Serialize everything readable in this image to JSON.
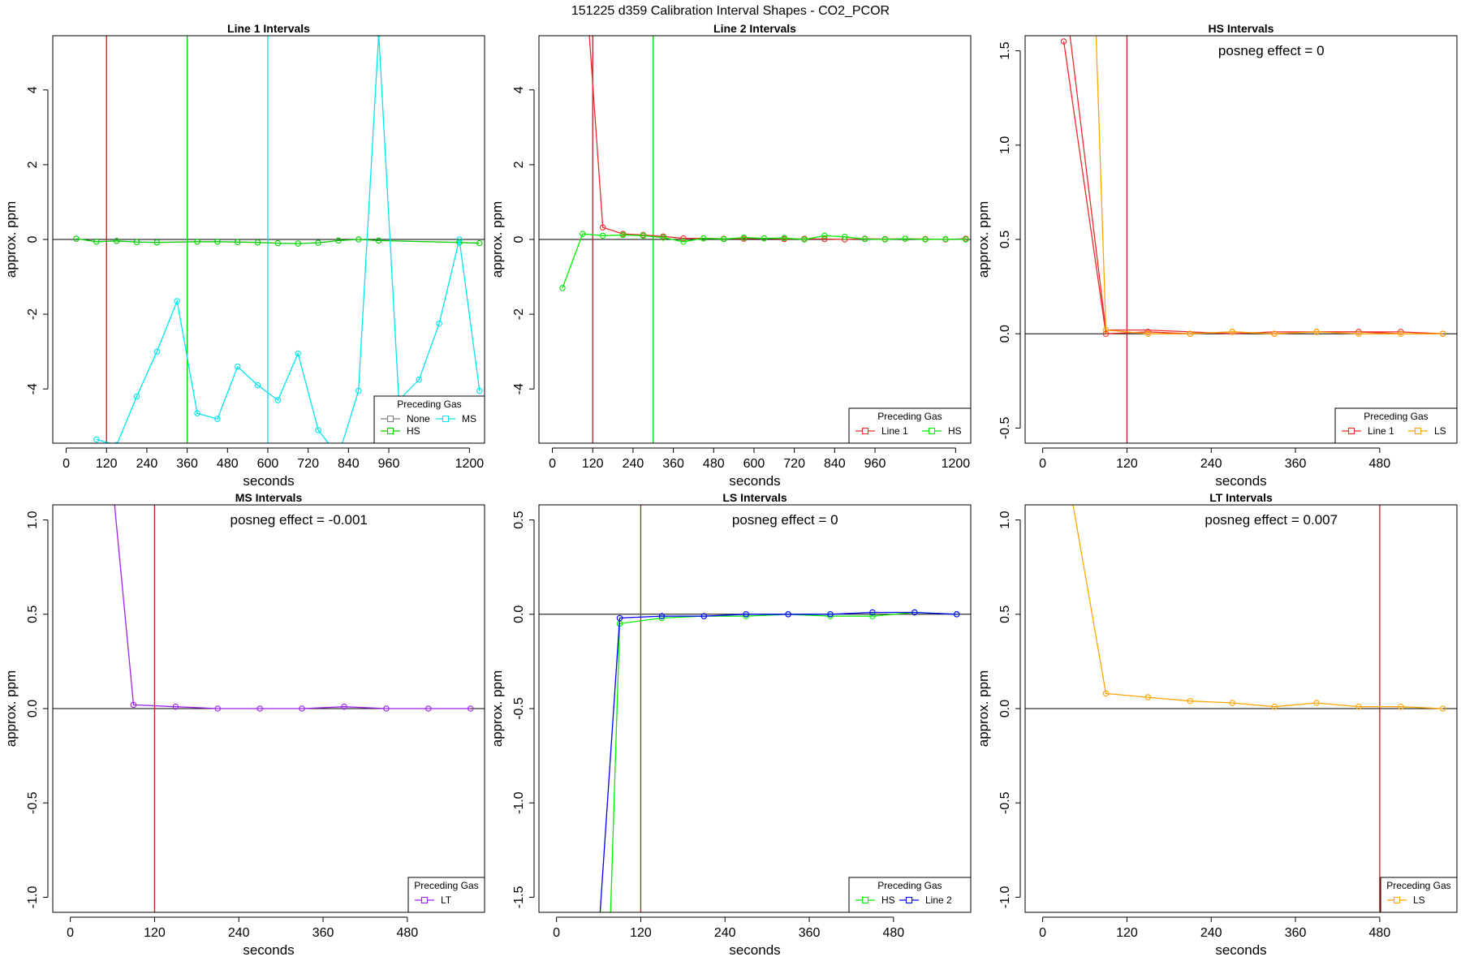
{
  "figure": {
    "title": "151225  d359   Calibration Interval Shapes - CO2_PCOR"
  },
  "chart_data": [
    {
      "type": "line",
      "title": "Line 1 Intervals",
      "xlabel": "seconds",
      "ylabel": "approx. ppm",
      "xlim": [
        -40,
        1245
      ],
      "ylim": [
        -5.45,
        5.45
      ],
      "xticks": [
        0,
        120,
        240,
        360,
        480,
        600,
        720,
        840,
        960,
        1200
      ],
      "yticks": [
        -4,
        -2,
        0,
        2,
        4
      ],
      "hline": 0,
      "vlines": [
        {
          "x": 120,
          "color": "#b22222"
        },
        {
          "x": 360,
          "color": "#00cd00"
        },
        {
          "x": 600,
          "color": "#00e5ee"
        }
      ],
      "annotation": "",
      "legend": {
        "title": "Preceding Gas",
        "position": "bottom-right",
        "columns": 2
      },
      "series": [
        {
          "name": "None",
          "color": "#808080",
          "x": [],
          "y": []
        },
        {
          "name": "HS",
          "color": "#00cd00",
          "x": [
            30,
            90,
            150,
            210,
            270,
            390,
            450,
            510,
            570,
            630,
            690,
            750,
            810,
            870,
            930,
            1170,
            1230
          ],
          "y": [
            0.02,
            -0.06,
            -0.04,
            -0.07,
            -0.08,
            -0.06,
            -0.06,
            -0.07,
            -0.08,
            -0.1,
            -0.11,
            -0.09,
            -0.03,
            0.0,
            -0.03,
            -0.08,
            -0.1
          ]
        },
        {
          "name": "MS",
          "color": "#00e5ee",
          "x": [
            90,
            150,
            210,
            270,
            330,
            390,
            450,
            510,
            570,
            630,
            690,
            750,
            810,
            870,
            930,
            990,
            1050,
            1110,
            1170,
            1230
          ],
          "y": [
            -5.35,
            -5.5,
            -4.2,
            -3.0,
            -1.65,
            -4.65,
            -4.8,
            -3.4,
            -3.9,
            -4.3,
            -3.05,
            -5.1,
            -5.8,
            -4.05,
            5.5,
            -4.3,
            -3.75,
            -2.25,
            0.0,
            -4.05
          ]
        }
      ]
    },
    {
      "type": "line",
      "title": "Line 2 Intervals",
      "xlabel": "seconds",
      "ylabel": "approx. ppm",
      "xlim": [
        -40,
        1245
      ],
      "ylim": [
        -5.45,
        5.45
      ],
      "xticks": [
        0,
        120,
        240,
        360,
        480,
        600,
        720,
        840,
        960,
        1200
      ],
      "yticks": [
        -4,
        -2,
        0,
        2,
        4
      ],
      "hline": 0,
      "vlines": [
        {
          "x": 120,
          "color": "#b22222"
        },
        {
          "x": 300,
          "color": "#00cd00"
        }
      ],
      "annotation": "",
      "legend": {
        "title": "Preceding Gas",
        "position": "bottom-right",
        "columns": 2
      },
      "series": [
        {
          "name": "Line 1",
          "color": "#ee2c2c",
          "x": [
            90,
            150,
            210,
            270,
            330,
            390,
            450,
            510,
            570,
            630,
            690,
            750,
            810,
            870,
            930,
            990,
            1050,
            1110,
            1170,
            1230
          ],
          "y": [
            8.0,
            0.32,
            0.15,
            0.12,
            0.08,
            0.03,
            0.03,
            0.02,
            0.02,
            0.03,
            0.01,
            0.02,
            0.01,
            0.0,
            0.02,
            0.01,
            0.02,
            0.01,
            0.0,
            0.02
          ]
        },
        {
          "name": "HS",
          "color": "#00ee00",
          "x": [
            30,
            90,
            150,
            210,
            270,
            330,
            390,
            450,
            510,
            570,
            630,
            690,
            750,
            810,
            870,
            930,
            990,
            1050,
            1110,
            1170,
            1230
          ],
          "y": [
            -1.3,
            0.15,
            0.1,
            0.12,
            0.1,
            0.05,
            -0.06,
            0.03,
            0.01,
            0.05,
            0.03,
            0.04,
            0.0,
            0.1,
            0.07,
            0.01,
            0.0,
            0.02,
            0.0,
            0.01,
            0.0
          ]
        }
      ]
    },
    {
      "type": "line",
      "title": "HS Intervals",
      "xlabel": "seconds",
      "ylabel": "approx. ppm",
      "xlim": [
        -25,
        590
      ],
      "ylim": [
        -0.58,
        1.58
      ],
      "xticks": [
        0,
        120,
        240,
        360,
        480
      ],
      "yticks": [
        -0.5,
        0.0,
        0.5,
        1.0,
        1.5
      ],
      "hline": 0,
      "vlines": [
        {
          "x": 120,
          "color": "#b22222"
        }
      ],
      "annotation": "posneg effect = 0",
      "legend": {
        "title": "Preceding Gas",
        "position": "bottom-right",
        "columns": 2
      },
      "series": [
        {
          "name": "Line 1",
          "color": "#ee2c2c",
          "x": [
            30,
            90,
            150,
            210,
            270,
            330,
            390,
            450,
            510,
            570
          ],
          "y": [
            1.55,
            0.0,
            0.01,
            0.0,
            0.01,
            0.0,
            0.01,
            0.01,
            0.01,
            0.0
          ],
          "extra_lines": [
            {
              "x": [
                35,
                90,
                150,
                210,
                270,
                330,
                390,
                450,
                510,
                570
              ],
              "y": [
                1.7,
                0.02,
                0.02,
                0.01,
                0.0,
                0.01,
                0.01,
                0.01,
                0.0,
                0.0
              ]
            }
          ]
        },
        {
          "name": "LS",
          "color": "#ffa500",
          "x": [
            75,
            90,
            150,
            210,
            270,
            330,
            390,
            450,
            510,
            570
          ],
          "y": [
            1.7,
            0.02,
            0.0,
            0.0,
            0.01,
            0.0,
            0.01,
            0.0,
            0.0,
            0.0
          ]
        }
      ]
    },
    {
      "type": "line",
      "title": "MS Intervals",
      "xlabel": "seconds",
      "ylabel": "approx. ppm",
      "xlim": [
        -25,
        590
      ],
      "ylim": [
        -1.08,
        1.08
      ],
      "xticks": [
        0,
        120,
        240,
        360,
        480
      ],
      "yticks": [
        -1.0,
        -0.5,
        0.0,
        0.5,
        1.0
      ],
      "hline": 0,
      "vlines": [
        {
          "x": 120,
          "color": "#b22222"
        }
      ],
      "annotation": "posneg effect = -0.001",
      "legend": {
        "title": "Preceding Gas",
        "position": "bottom-right",
        "columns": 1
      },
      "series": [
        {
          "name": "LT",
          "color": "#a020f0",
          "x": [
            60,
            90,
            150,
            210,
            270,
            330,
            390,
            450,
            510,
            570
          ],
          "y": [
            1.2,
            0.02,
            0.01,
            0.0,
            0.0,
            0.0,
            0.01,
            0.0,
            0.0,
            0.0
          ]
        }
      ]
    },
    {
      "type": "line",
      "title": "LS Intervals",
      "xlabel": "seconds",
      "ylabel": "approx. ppm",
      "xlim": [
        -25,
        590
      ],
      "ylim": [
        -1.58,
        0.58
      ],
      "xticks": [
        0,
        120,
        240,
        360,
        480
      ],
      "yticks": [
        -1.5,
        -1.0,
        -0.5,
        0.0,
        0.5
      ],
      "hline": 0,
      "vlines": [
        {
          "x": 120,
          "color": "#b22222"
        }
      ],
      "annotation": "posneg effect = 0",
      "legend": {
        "title": "Preceding Gas",
        "position": "bottom-right",
        "columns": 2
      },
      "series": [
        {
          "name": "HS",
          "color": "#00ee00",
          "x": [
            76,
            90,
            150,
            210,
            270,
            330,
            390,
            450,
            510,
            570
          ],
          "y": [
            -1.7,
            -0.05,
            -0.02,
            -0.01,
            -0.01,
            0.0,
            -0.01,
            -0.01,
            0.01,
            0.0
          ]
        },
        {
          "name": "Line 2",
          "color": "#0000ff",
          "x": [
            60,
            90,
            150,
            210,
            270,
            330,
            390,
            450,
            510,
            570
          ],
          "y": [
            -1.7,
            -0.02,
            -0.01,
            -0.01,
            0.0,
            0.0,
            0.0,
            0.01,
            0.01,
            0.0
          ]
        }
      ]
    },
    {
      "type": "line",
      "title": "LT Intervals",
      "xlabel": "seconds",
      "ylabel": "approx. ppm",
      "xlim": [
        -25,
        590
      ],
      "ylim": [
        -1.08,
        1.08
      ],
      "xticks": [
        0,
        120,
        240,
        360,
        480
      ],
      "yticks": [
        -1.0,
        -0.5,
        0.0,
        0.5,
        1.0
      ],
      "hline": 0,
      "vlines": [
        {
          "x": 480,
          "color": "#b22222"
        }
      ],
      "annotation": "posneg effect = 0.007",
      "legend": {
        "title": "Preceding Gas",
        "position": "bottom-right",
        "columns": 1
      },
      "series": [
        {
          "name": "LS",
          "color": "#ffa500",
          "x": [
            40,
            90,
            150,
            210,
            270,
            330,
            390,
            450,
            510,
            570
          ],
          "y": [
            1.15,
            0.08,
            0.06,
            0.04,
            0.03,
            0.01,
            0.03,
            0.01,
            0.01,
            0.0
          ]
        }
      ]
    }
  ]
}
